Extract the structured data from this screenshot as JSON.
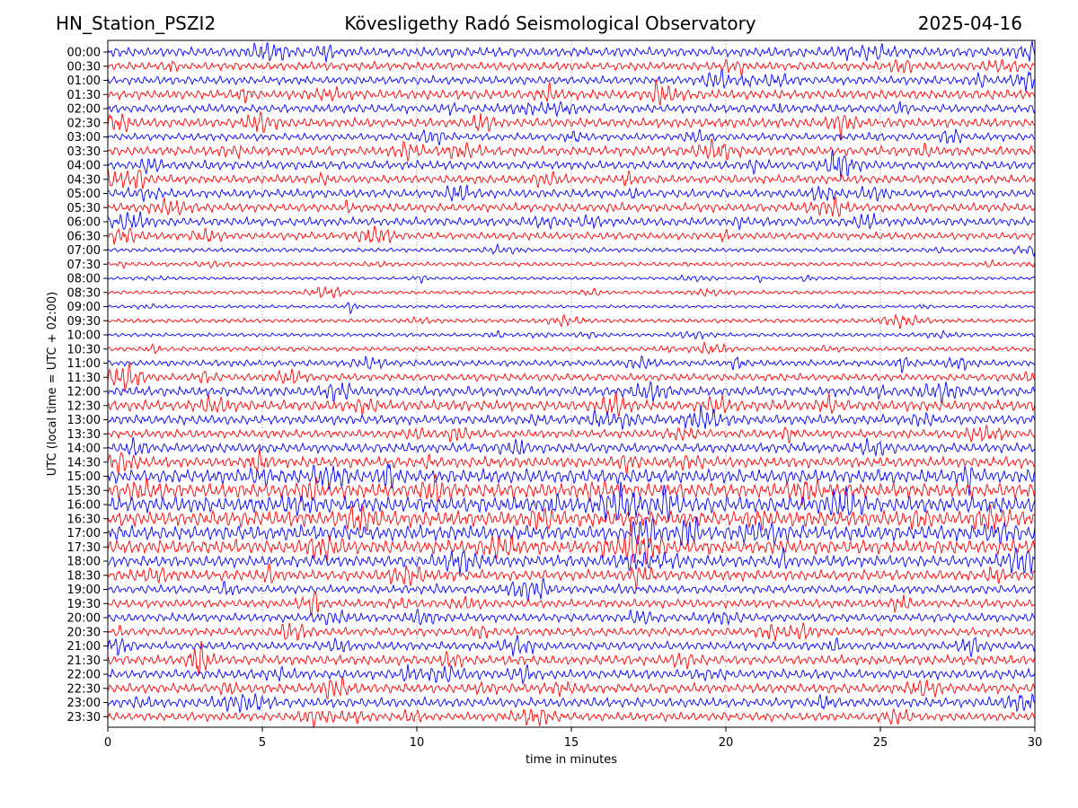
{
  "header": {
    "station": "HN_Station_PSZI2",
    "observatory": "Kövesligethy Radó Seismological Observatory",
    "date": "2025-04-16"
  },
  "chart_data": {
    "type": "line",
    "title": "Kövesligethy Radó Seismological Observatory",
    "xlabel": "time in minutes",
    "ylabel": "UTC (local time = UTC + 02:00)",
    "xlim": [
      0,
      30
    ],
    "x_ticks": [
      0,
      5,
      10,
      15,
      20,
      25,
      30
    ],
    "y_tick_labels": [
      "00:00",
      "00:30",
      "01:00",
      "01:30",
      "02:00",
      "02:30",
      "03:00",
      "03:30",
      "04:00",
      "04:30",
      "05:00",
      "05:30",
      "06:00",
      "06:30",
      "07:00",
      "07:30",
      "08:00",
      "08:30",
      "09:00",
      "09:30",
      "10:00",
      "10:30",
      "11:00",
      "11:30",
      "12:00",
      "12:30",
      "13:00",
      "13:30",
      "14:00",
      "14:30",
      "15:00",
      "15:30",
      "16:00",
      "16:30",
      "17:00",
      "17:30",
      "18:00",
      "18:30",
      "19:00",
      "19:30",
      "20:00",
      "20:30",
      "21:00",
      "21:30",
      "22:00",
      "22:30",
      "23:00",
      "23:30"
    ],
    "trace_colors": [
      "#0000ff",
      "#ff0000"
    ],
    "vertical_gridlines": true,
    "relative_amplitude_per_row": [
      0.9,
      0.8,
      0.8,
      0.9,
      0.8,
      0.9,
      0.7,
      0.9,
      0.8,
      0.8,
      0.8,
      0.8,
      0.8,
      0.7,
      0.4,
      0.4,
      0.3,
      0.35,
      0.3,
      0.4,
      0.35,
      0.45,
      0.6,
      0.7,
      0.9,
      1.0,
      0.9,
      0.8,
      0.9,
      1.0,
      1.3,
      1.4,
      1.5,
      1.5,
      1.4,
      1.3,
      1.1,
      1.0,
      0.8,
      0.8,
      0.8,
      0.8,
      0.8,
      0.9,
      0.9,
      0.9,
      0.9,
      0.8
    ]
  }
}
